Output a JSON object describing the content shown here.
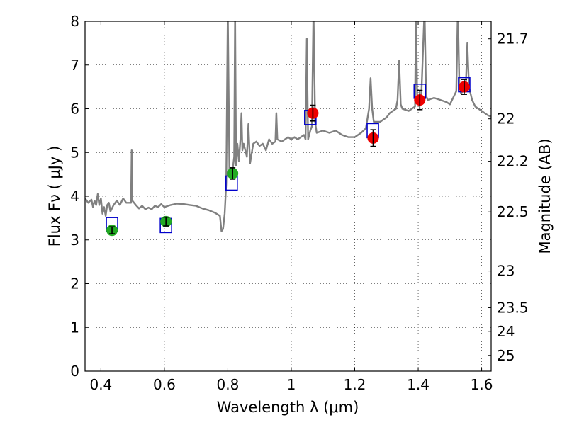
{
  "chart_data": {
    "type": "scatter",
    "xlabel": "Wavelength  λ (μm)",
    "ylabel": "Flux  Fν  ( μJy )",
    "ylabel_right": "Magnitude (AB)",
    "xlim": [
      0.35,
      1.63
    ],
    "ylim": [
      0,
      8
    ],
    "x_ticks": [
      0.4,
      0.6,
      0.8,
      1.0,
      1.2,
      1.4,
      1.6
    ],
    "x_tick_labels": [
      "0.4",
      "0.6",
      "0.8",
      "1",
      "1.2",
      "1.4",
      "1.6"
    ],
    "y_ticks": [
      0,
      1,
      2,
      3,
      4,
      5,
      6,
      7,
      8
    ],
    "y_tick_labels": [
      "0",
      "1",
      "2",
      "3",
      "4",
      "5",
      "6",
      "7",
      "8"
    ],
    "right_ticks": [
      {
        "label": "21.7",
        "flux": 7.6
      },
      {
        "label": "22",
        "flux": 5.77
      },
      {
        "label": "22.2",
        "flux": 4.8
      },
      {
        "label": "22.5",
        "flux": 3.64
      },
      {
        "label": "23",
        "flux": 2.29
      },
      {
        "label": "23.5",
        "flux": 1.45
      },
      {
        "label": "24",
        "flux": 0.91
      },
      {
        "label": "25",
        "flux": 0.36
      }
    ],
    "grid": true,
    "colors": {
      "model": "#808080",
      "model_photometry": "#0000cc",
      "hst_points": "#22aa22",
      "ir_points": "#ee0000",
      "error_bars": "#000000"
    },
    "series": [
      {
        "kind": "model_spectrum",
        "points": [
          [
            0.35,
            3.95
          ],
          [
            0.36,
            3.85
          ],
          [
            0.37,
            3.92
          ],
          [
            0.375,
            3.75
          ],
          [
            0.38,
            3.9
          ],
          [
            0.385,
            3.8
          ],
          [
            0.39,
            4.05
          ],
          [
            0.395,
            3.8
          ],
          [
            0.4,
            3.95
          ],
          [
            0.405,
            3.6
          ],
          [
            0.41,
            3.75
          ],
          [
            0.415,
            3.55
          ],
          [
            0.42,
            3.8
          ],
          [
            0.425,
            3.85
          ],
          [
            0.43,
            3.65
          ],
          [
            0.44,
            3.8
          ],
          [
            0.45,
            3.9
          ],
          [
            0.46,
            3.8
          ],
          [
            0.47,
            3.95
          ],
          [
            0.48,
            3.85
          ],
          [
            0.49,
            3.85
          ],
          [
            0.495,
            3.85
          ],
          [
            0.497,
            5.05
          ],
          [
            0.499,
            3.9
          ],
          [
            0.51,
            3.8
          ],
          [
            0.52,
            3.72
          ],
          [
            0.53,
            3.78
          ],
          [
            0.54,
            3.7
          ],
          [
            0.55,
            3.74
          ],
          [
            0.56,
            3.7
          ],
          [
            0.57,
            3.78
          ],
          [
            0.58,
            3.75
          ],
          [
            0.59,
            3.82
          ],
          [
            0.6,
            3.75
          ],
          [
            0.62,
            3.8
          ],
          [
            0.64,
            3.83
          ],
          [
            0.66,
            3.82
          ],
          [
            0.68,
            3.8
          ],
          [
            0.7,
            3.78
          ],
          [
            0.72,
            3.72
          ],
          [
            0.74,
            3.68
          ],
          [
            0.76,
            3.62
          ],
          [
            0.775,
            3.55
          ],
          [
            0.78,
            3.2
          ],
          [
            0.785,
            3.25
          ],
          [
            0.79,
            3.6
          ],
          [
            0.795,
            4.3
          ],
          [
            0.8,
            8.3
          ],
          [
            0.805,
            4.6
          ],
          [
            0.81,
            4.5
          ],
          [
            0.815,
            4.6
          ],
          [
            0.82,
            4.9
          ],
          [
            0.823,
            8.3
          ],
          [
            0.826,
            4.7
          ],
          [
            0.83,
            5.2
          ],
          [
            0.835,
            4.8
          ],
          [
            0.84,
            5.35
          ],
          [
            0.843,
            5.9
          ],
          [
            0.846,
            5.05
          ],
          [
            0.85,
            5.2
          ],
          [
            0.86,
            4.9
          ],
          [
            0.865,
            5.65
          ],
          [
            0.87,
            4.75
          ],
          [
            0.88,
            5.2
          ],
          [
            0.89,
            5.25
          ],
          [
            0.9,
            5.15
          ],
          [
            0.91,
            5.2
          ],
          [
            0.92,
            5.05
          ],
          [
            0.93,
            5.3
          ],
          [
            0.94,
            5.2
          ],
          [
            0.95,
            5.25
          ],
          [
            0.953,
            5.9
          ],
          [
            0.956,
            5.3
          ],
          [
            0.97,
            5.25
          ],
          [
            0.98,
            5.3
          ],
          [
            0.99,
            5.35
          ],
          [
            1.0,
            5.3
          ],
          [
            1.01,
            5.35
          ],
          [
            1.02,
            5.3
          ],
          [
            1.03,
            5.35
          ],
          [
            1.04,
            5.4
          ],
          [
            1.045,
            5.3
          ],
          [
            1.049,
            7.6
          ],
          [
            1.053,
            5.3
          ],
          [
            1.06,
            5.5
          ],
          [
            1.065,
            5.6
          ],
          [
            1.07,
            8.3
          ],
          [
            1.075,
            5.7
          ],
          [
            1.08,
            5.45
          ],
          [
            1.1,
            5.5
          ],
          [
            1.12,
            5.45
          ],
          [
            1.14,
            5.5
          ],
          [
            1.16,
            5.4
          ],
          [
            1.18,
            5.35
          ],
          [
            1.2,
            5.35
          ],
          [
            1.22,
            5.45
          ],
          [
            1.235,
            5.55
          ],
          [
            1.245,
            6.0
          ],
          [
            1.25,
            6.7
          ],
          [
            1.255,
            6.0
          ],
          [
            1.26,
            5.7
          ],
          [
            1.27,
            5.7
          ],
          [
            1.28,
            5.7
          ],
          [
            1.29,
            5.75
          ],
          [
            1.3,
            5.8
          ],
          [
            1.31,
            5.9
          ],
          [
            1.32,
            5.95
          ],
          [
            1.33,
            6.0
          ],
          [
            1.335,
            6.2
          ],
          [
            1.34,
            7.1
          ],
          [
            1.345,
            6.1
          ],
          [
            1.35,
            6.0
          ],
          [
            1.37,
            5.95
          ],
          [
            1.38,
            6.0
          ],
          [
            1.39,
            6.05
          ],
          [
            1.393,
            8.3
          ],
          [
            1.397,
            6.2
          ],
          [
            1.41,
            6.3
          ],
          [
            1.42,
            8.3
          ],
          [
            1.425,
            6.3
          ],
          [
            1.43,
            6.2
          ],
          [
            1.45,
            6.25
          ],
          [
            1.47,
            6.2
          ],
          [
            1.49,
            6.15
          ],
          [
            1.5,
            6.1
          ],
          [
            1.51,
            6.25
          ],
          [
            1.52,
            6.4
          ],
          [
            1.525,
            8.3
          ],
          [
            1.53,
            6.5
          ],
          [
            1.535,
            6.35
          ],
          [
            1.54,
            6.4
          ],
          [
            1.55,
            6.5
          ],
          [
            1.555,
            7.5
          ],
          [
            1.56,
            6.5
          ],
          [
            1.57,
            6.2
          ],
          [
            1.58,
            6.05
          ],
          [
            1.59,
            6.0
          ],
          [
            1.6,
            5.95
          ],
          [
            1.61,
            5.9
          ],
          [
            1.62,
            5.85
          ],
          [
            1.63,
            5.82
          ]
        ]
      },
      {
        "kind": "model_photometry",
        "x": [
          0.435,
          0.605,
          0.812,
          1.06,
          1.257,
          1.405,
          1.545
        ],
        "y": [
          3.35,
          3.33,
          4.3,
          5.8,
          5.5,
          6.4,
          6.55
        ]
      },
      {
        "kind": "hst_points",
        "x": [
          0.435,
          0.605,
          0.815
        ],
        "y": [
          3.22,
          3.42,
          4.52
        ],
        "err": [
          0.08,
          0.1,
          0.13
        ]
      },
      {
        "kind": "ir_points",
        "x": [
          1.068,
          1.258,
          1.405,
          1.545
        ],
        "y": [
          5.9,
          5.33,
          6.2,
          6.5
        ],
        "err": [
          0.18,
          0.19,
          0.22,
          0.17
        ]
      }
    ]
  }
}
